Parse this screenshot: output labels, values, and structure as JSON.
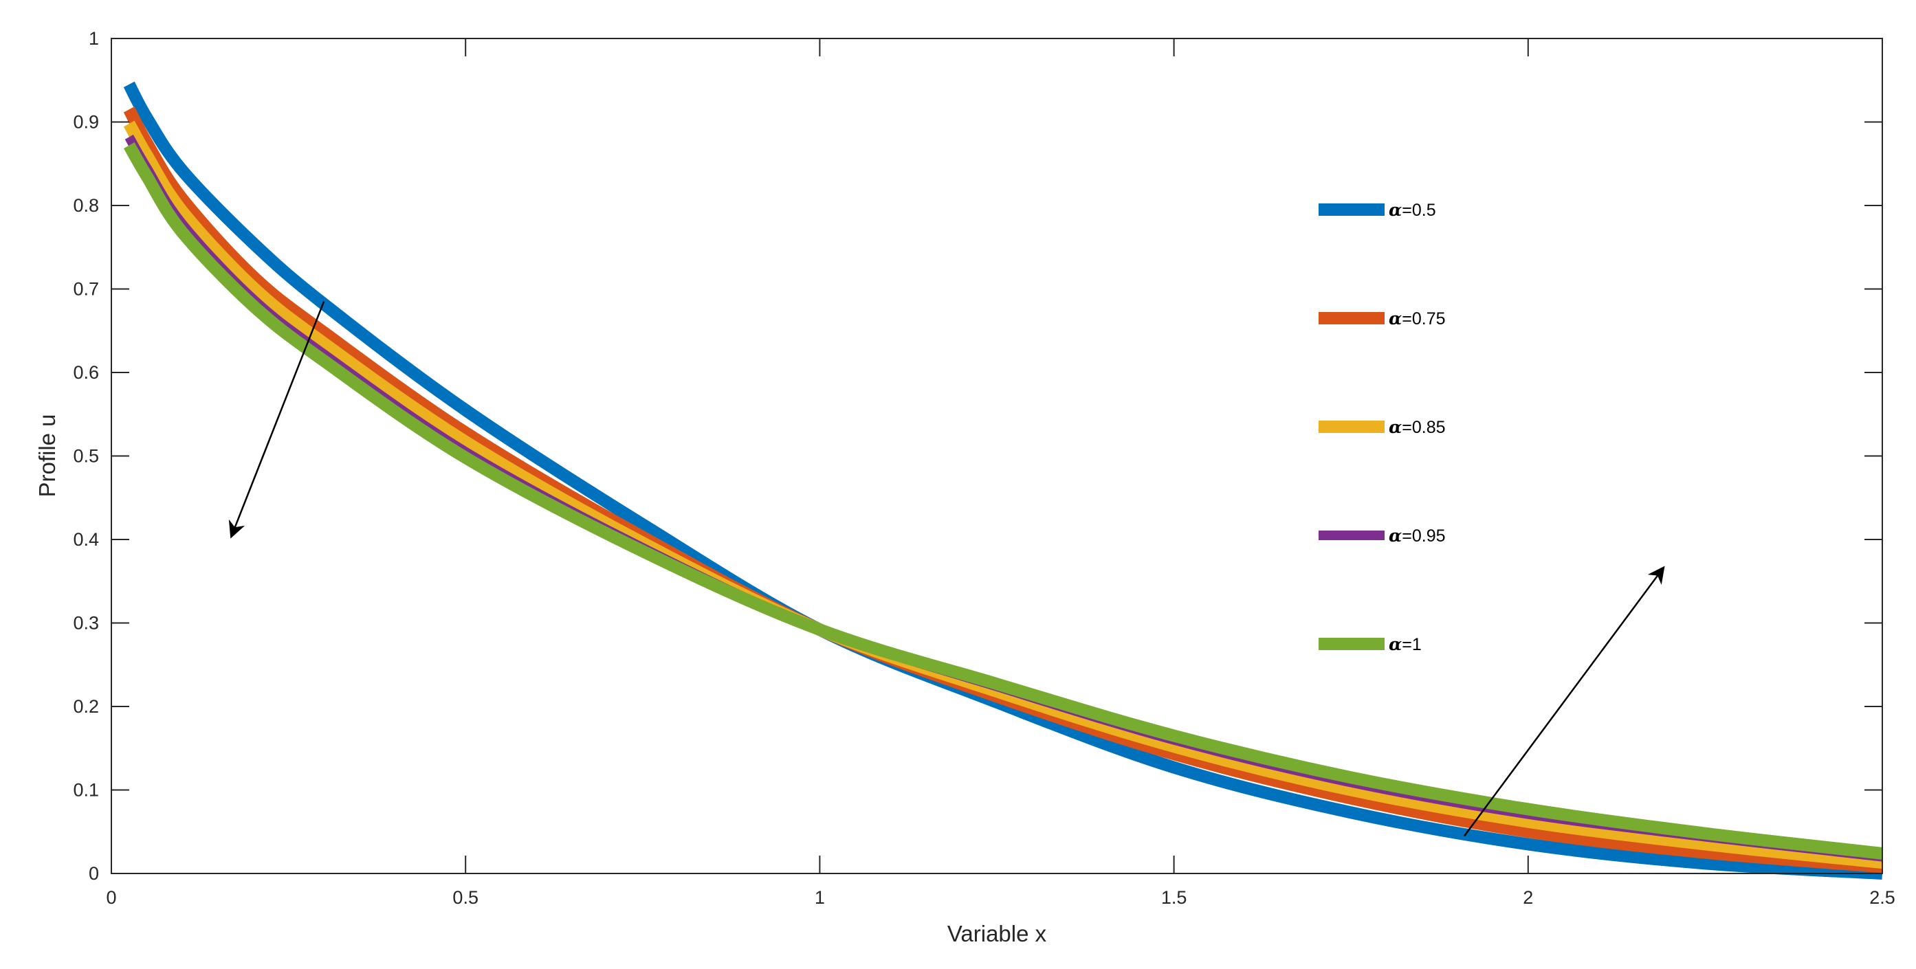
{
  "chart_data": {
    "type": "line",
    "title": "",
    "xlabel": "Variable x",
    "ylabel": "Profile u",
    "xlim": [
      0,
      2.5
    ],
    "ylim": [
      0,
      1
    ],
    "xticks": [
      0,
      0.5,
      1,
      1.5,
      2,
      2.5
    ],
    "xtick_labels": [
      "0",
      "0.5",
      "1",
      "1.5",
      "2",
      "2.5"
    ],
    "yticks": [
      0,
      0.1,
      0.2,
      0.3,
      0.4,
      0.5,
      0.6,
      0.7,
      0.8,
      0.9,
      1
    ],
    "ytick_labels": [
      "0",
      "0.1",
      "0.2",
      "0.3",
      "0.4",
      "0.5",
      "0.6",
      "0.7",
      "0.8",
      "0.9",
      "1"
    ],
    "grid": false,
    "legend_position": "upper-right, vertical",
    "x": [
      0.025,
      0.05,
      0.1,
      0.2,
      0.3,
      0.5,
      0.75,
      1.0,
      1.25,
      1.5,
      1.75,
      2.0,
      2.25,
      2.5
    ],
    "series": [
      {
        "name": "α=0.5",
        "legend_symbol": "α",
        "legend_value": "=0.5",
        "color": "#0072BD",
        "values": [
          0.945,
          0.905,
          0.842,
          0.755,
          0.682,
          0.555,
          0.418,
          0.292,
          0.205,
          0.127,
          0.073,
          0.035,
          0.012,
          0.0
        ]
      },
      {
        "name": "α=0.75",
        "legend_symbol": "α",
        "legend_value": "=0.75",
        "color": "#D95319",
        "values": [
          0.915,
          0.875,
          0.808,
          0.715,
          0.648,
          0.528,
          0.403,
          0.292,
          0.212,
          0.143,
          0.09,
          0.05,
          0.025,
          0.008
        ]
      },
      {
        "name": "α=0.85",
        "legend_symbol": "α",
        "legend_value": "=0.85",
        "color": "#EDB120",
        "values": [
          0.898,
          0.86,
          0.793,
          0.702,
          0.635,
          0.517,
          0.396,
          0.292,
          0.218,
          0.152,
          0.1,
          0.062,
          0.035,
          0.013
        ]
      },
      {
        "name": "α=0.95",
        "legend_symbol": "α",
        "legend_value": "=0.95",
        "color": "#7E2F8E",
        "values": [
          0.882,
          0.845,
          0.778,
          0.688,
          0.622,
          0.505,
          0.39,
          0.292,
          0.224,
          0.16,
          0.109,
          0.071,
          0.044,
          0.02
        ]
      },
      {
        "name": "α=1",
        "legend_symbol": "α",
        "legend_value": "=1",
        "color": "#77AC30",
        "values": [
          0.872,
          0.835,
          0.768,
          0.68,
          0.614,
          0.498,
          0.386,
          0.292,
          0.227,
          0.165,
          0.115,
          0.077,
          0.048,
          0.024
        ]
      }
    ],
    "annotations": [
      {
        "type": "arrow",
        "from": [
          0.3,
          0.685
        ],
        "to": [
          0.17,
          0.405
        ]
      },
      {
        "type": "arrow",
        "from": [
          1.91,
          0.045
        ],
        "to": [
          2.19,
          0.365
        ]
      }
    ]
  }
}
